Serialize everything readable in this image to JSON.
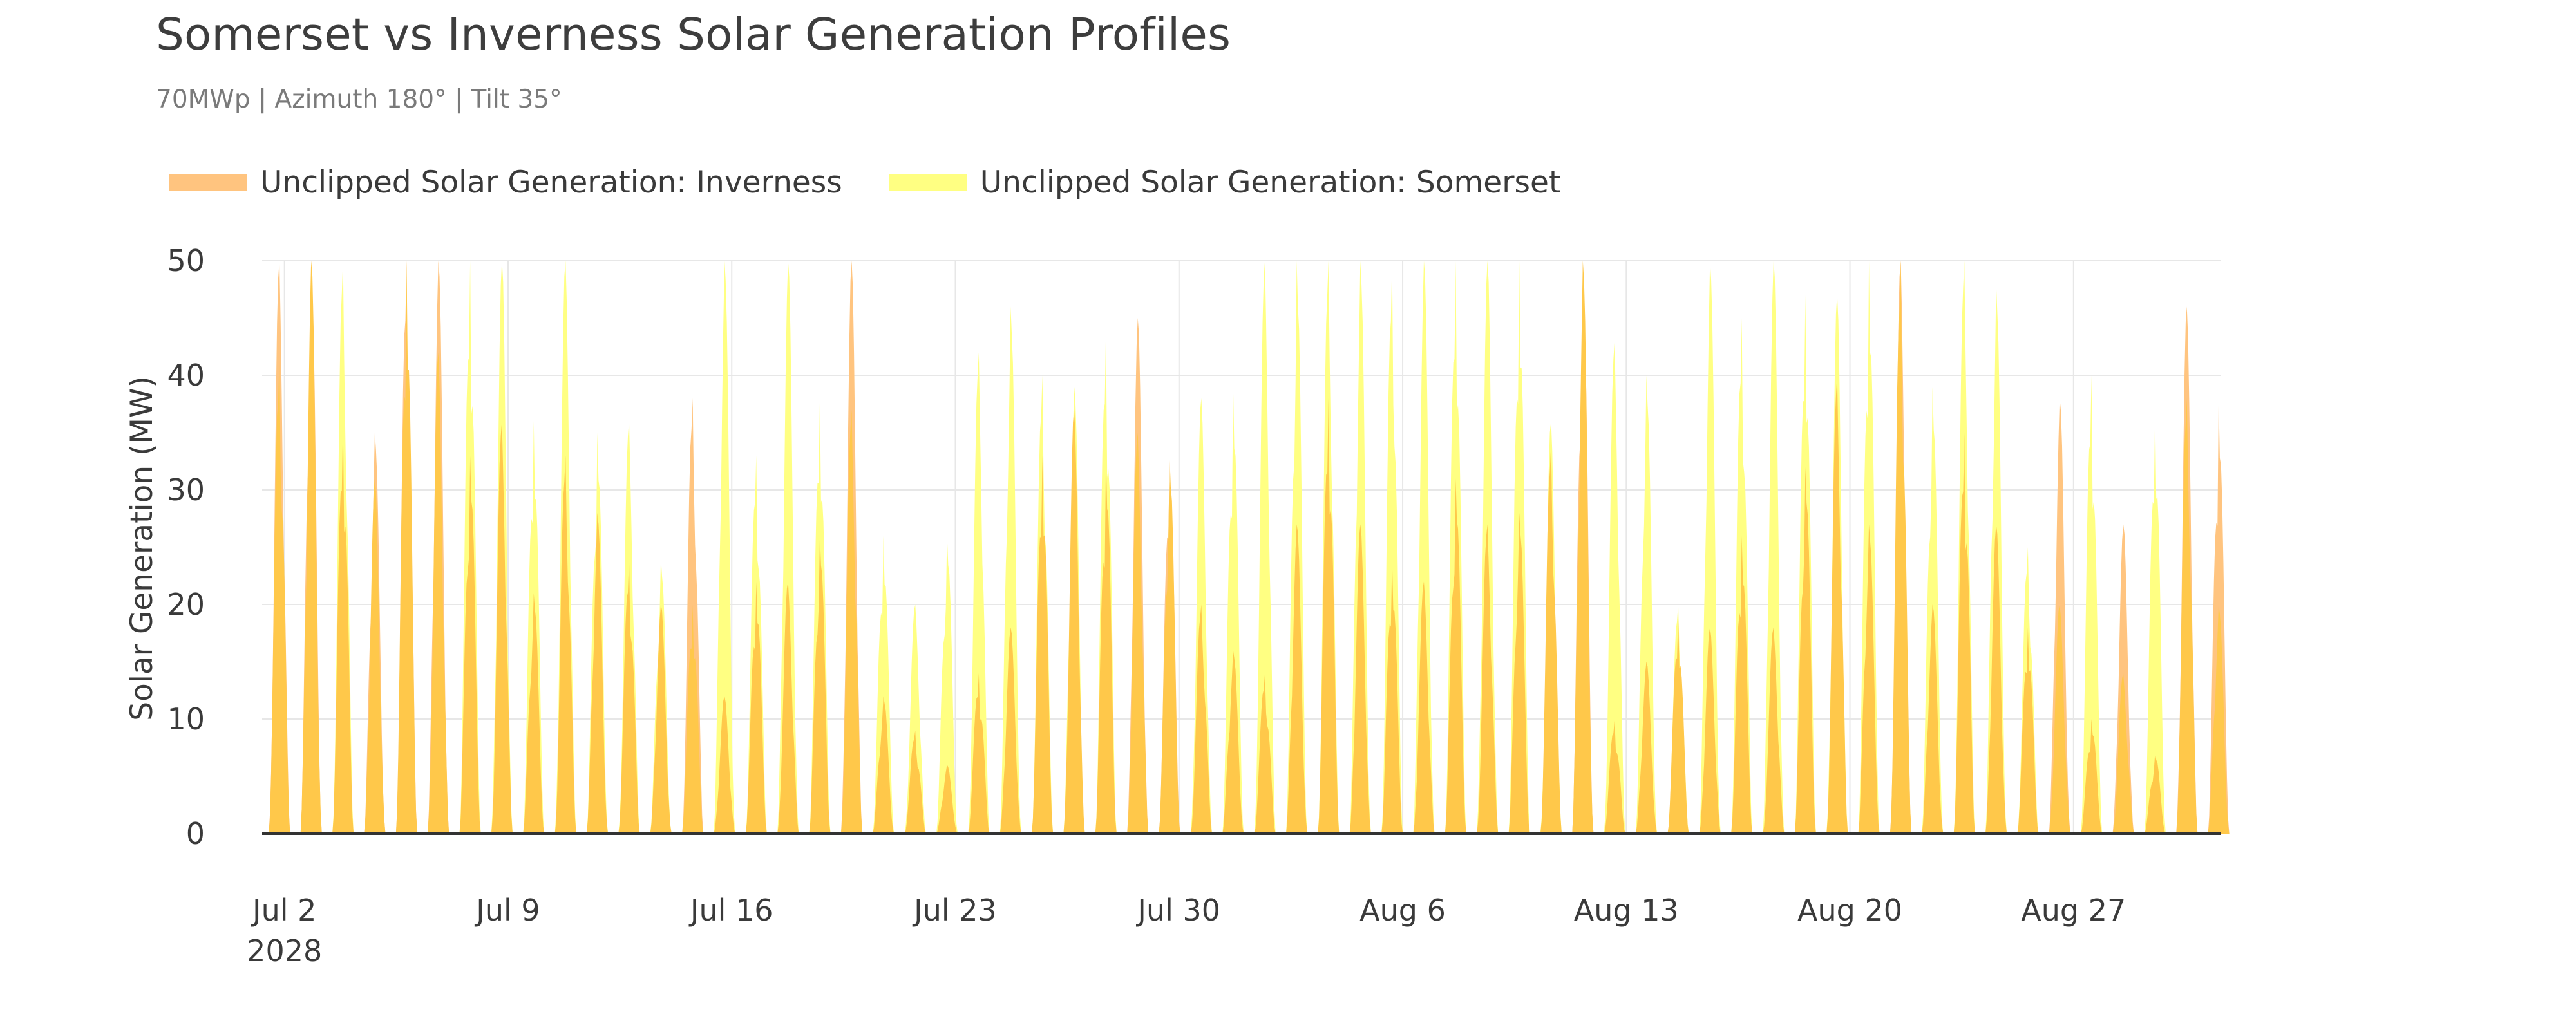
{
  "chart_data": {
    "type": "area",
    "title": "Somerset vs Inverness Solar Generation Profiles",
    "subtitle": "70MWp | Azimuth 180° | Tilt 35°",
    "xlabel": "",
    "ylabel": "Solar Generation (MW)",
    "ylim": [
      0,
      50
    ],
    "y_ticks": [
      0,
      10,
      20,
      30,
      40,
      50
    ],
    "x_start_date": "2028-07-01",
    "x_range_days": [
      0.3,
      61.6
    ],
    "x_ticks": [
      {
        "day": 1,
        "label": "Jul 2",
        "sublabel": "2028"
      },
      {
        "day": 8,
        "label": "Jul 9"
      },
      {
        "day": 15,
        "label": "Jul 16"
      },
      {
        "day": 22,
        "label": "Jul 23"
      },
      {
        "day": 29,
        "label": "Jul 30"
      },
      {
        "day": 36,
        "label": "Aug 6"
      },
      {
        "day": 43,
        "label": "Aug 13"
      },
      {
        "day": 50,
        "label": "Aug 20"
      },
      {
        "day": 57,
        "label": "Aug 27"
      }
    ],
    "grid": true,
    "legend_position": "top-left",
    "colors": {
      "inverness": "#FFC47F",
      "somerset": "#FFFF82",
      "overlap": "#FFC84A",
      "grid": "#e7e7e7",
      "axis": "#333333"
    },
    "series": [
      {
        "name": "Unclipped Solar Generation: Inverness",
        "daily_peak_mw": [
          50,
          50,
          36,
          35,
          50,
          50,
          33,
          36,
          21,
          33,
          28,
          24,
          20,
          38,
          12,
          22,
          22,
          26,
          50,
          12,
          9,
          6,
          14,
          18,
          33,
          37,
          33,
          45,
          33,
          20,
          16,
          14,
          27,
          38,
          27,
          24,
          22,
          31,
          27,
          28,
          34,
          50,
          10,
          15,
          19,
          18,
          26,
          18,
          32,
          40,
          27,
          50,
          20,
          35,
          27,
          18,
          38,
          10,
          27,
          7,
          46,
          38
        ]
      },
      {
        "name": "Unclipped Solar Generation: Somerset",
        "daily_peak_mw": [
          42,
          50,
          50,
          31,
          50,
          42,
          50,
          50,
          36,
          50,
          35,
          36,
          24,
          20,
          50,
          33,
          50,
          38,
          37,
          26,
          20,
          26,
          42,
          46,
          40,
          39,
          44,
          35,
          33,
          38,
          39,
          50,
          50,
          50,
          50,
          50,
          50,
          50,
          50,
          50,
          36,
          50,
          43,
          40,
          20,
          50,
          45,
          50,
          47,
          47,
          50,
          50,
          39,
          50,
          48,
          25,
          20,
          40,
          14,
          37,
          38,
          20
        ]
      }
    ]
  }
}
